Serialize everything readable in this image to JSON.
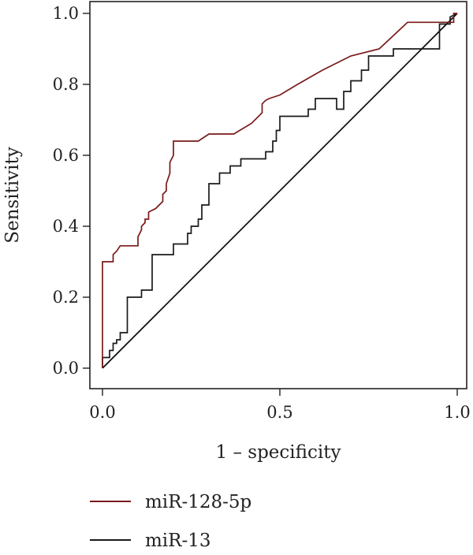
{
  "chart_data": {
    "type": "line",
    "title": "",
    "xlabel": "1 – specificity",
    "ylabel": "Sensitivity",
    "xlim": [
      0,
      1
    ],
    "ylim": [
      0,
      1
    ],
    "x_ticks": [
      0.0,
      0.5,
      1.0
    ],
    "x_tick_labels": [
      "0.0",
      "0.5",
      "1.0"
    ],
    "y_ticks": [
      0.0,
      0.2,
      0.4,
      0.6,
      0.8,
      1.0
    ],
    "y_tick_labels": [
      "0.0",
      "0.2",
      "0.4",
      "0.6",
      "0.8",
      "1.0"
    ],
    "grid": false,
    "legend_position": "bottom-left",
    "reference_line": {
      "from": [
        0,
        0
      ],
      "to": [
        1,
        1
      ],
      "color": "#000000"
    },
    "series": [
      {
        "name": "miR-128-5p",
        "color": "#7a1a1a",
        "x": [
          0,
          0,
          0.03,
          0.03,
          0.04,
          0.05,
          0.1,
          0.1,
          0.11,
          0.11,
          0.12,
          0.12,
          0.13,
          0.13,
          0.15,
          0.17,
          0.17,
          0.18,
          0.18,
          0.19,
          0.19,
          0.2,
          0.2,
          0.27,
          0.3,
          0.37,
          0.42,
          0.45,
          0.45,
          0.46,
          0.47,
          0.5,
          0.55,
          0.62,
          0.7,
          0.78,
          0.86,
          0.96,
          0.99,
          0.99,
          1.0
        ],
        "y": [
          0,
          0.3,
          0.3,
          0.32,
          0.33,
          0.345,
          0.345,
          0.37,
          0.39,
          0.4,
          0.41,
          0.42,
          0.42,
          0.44,
          0.45,
          0.47,
          0.49,
          0.5,
          0.52,
          0.55,
          0.58,
          0.6,
          0.64,
          0.64,
          0.66,
          0.66,
          0.69,
          0.72,
          0.745,
          0.755,
          0.76,
          0.77,
          0.8,
          0.84,
          0.88,
          0.9,
          0.975,
          0.975,
          0.975,
          1.0,
          1.0
        ]
      },
      {
        "name": "miR-13",
        "color": "#1a1a1a",
        "x": [
          0,
          0,
          0.02,
          0.02,
          0.03,
          0.03,
          0.04,
          0.04,
          0.05,
          0.05,
          0.07,
          0.07,
          0.11,
          0.11,
          0.14,
          0.14,
          0.2,
          0.2,
          0.24,
          0.24,
          0.25,
          0.25,
          0.27,
          0.27,
          0.28,
          0.28,
          0.3,
          0.3,
          0.33,
          0.33,
          0.36,
          0.36,
          0.39,
          0.39,
          0.46,
          0.46,
          0.48,
          0.48,
          0.49,
          0.49,
          0.5,
          0.5,
          0.58,
          0.58,
          0.6,
          0.6,
          0.66,
          0.66,
          0.68,
          0.68,
          0.7,
          0.7,
          0.73,
          0.73,
          0.75,
          0.75,
          0.82,
          0.82,
          0.95,
          0.95,
          0.98,
          0.98,
          1.0
        ],
        "y": [
          0,
          0.03,
          0.03,
          0.05,
          0.05,
          0.07,
          0.07,
          0.08,
          0.08,
          0.1,
          0.1,
          0.2,
          0.2,
          0.22,
          0.22,
          0.32,
          0.32,
          0.35,
          0.35,
          0.38,
          0.38,
          0.4,
          0.4,
          0.42,
          0.42,
          0.46,
          0.46,
          0.52,
          0.52,
          0.55,
          0.55,
          0.57,
          0.57,
          0.59,
          0.59,
          0.61,
          0.61,
          0.64,
          0.64,
          0.67,
          0.67,
          0.71,
          0.71,
          0.73,
          0.73,
          0.76,
          0.76,
          0.73,
          0.73,
          0.78,
          0.78,
          0.81,
          0.81,
          0.84,
          0.84,
          0.88,
          0.88,
          0.9,
          0.9,
          0.97,
          0.97,
          0.99,
          1.0
        ]
      }
    ]
  }
}
